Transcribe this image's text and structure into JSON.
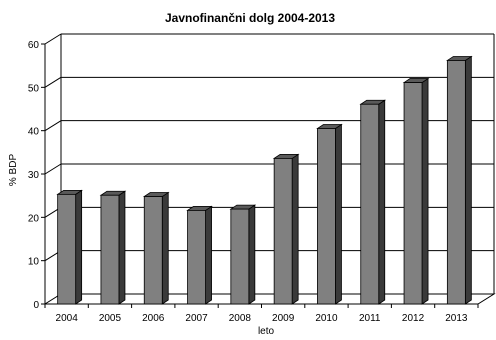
{
  "chart_data": {
    "type": "bar",
    "title": "Javnofinančni dolg 2004-2013",
    "xlabel": "leto",
    "ylabel": "% BDP",
    "categories": [
      "2004",
      "2005",
      "2006",
      "2007",
      "2008",
      "2009",
      "2010",
      "2011",
      "2012",
      "2013"
    ],
    "values": [
      25.3,
      25.1,
      24.8,
      21.6,
      21.9,
      33.6,
      40.5,
      46.1,
      51.1,
      56.2
    ],
    "ylim": [
      0,
      60
    ],
    "yticks": [
      0,
      10,
      20,
      30,
      40,
      50,
      60
    ],
    "grid": true,
    "legend": "none",
    "colors": {
      "bar_front": "#808080",
      "bar_side": "#3a3a3a",
      "bar_top": "#5a5a5a",
      "grid": "#000000"
    }
  }
}
